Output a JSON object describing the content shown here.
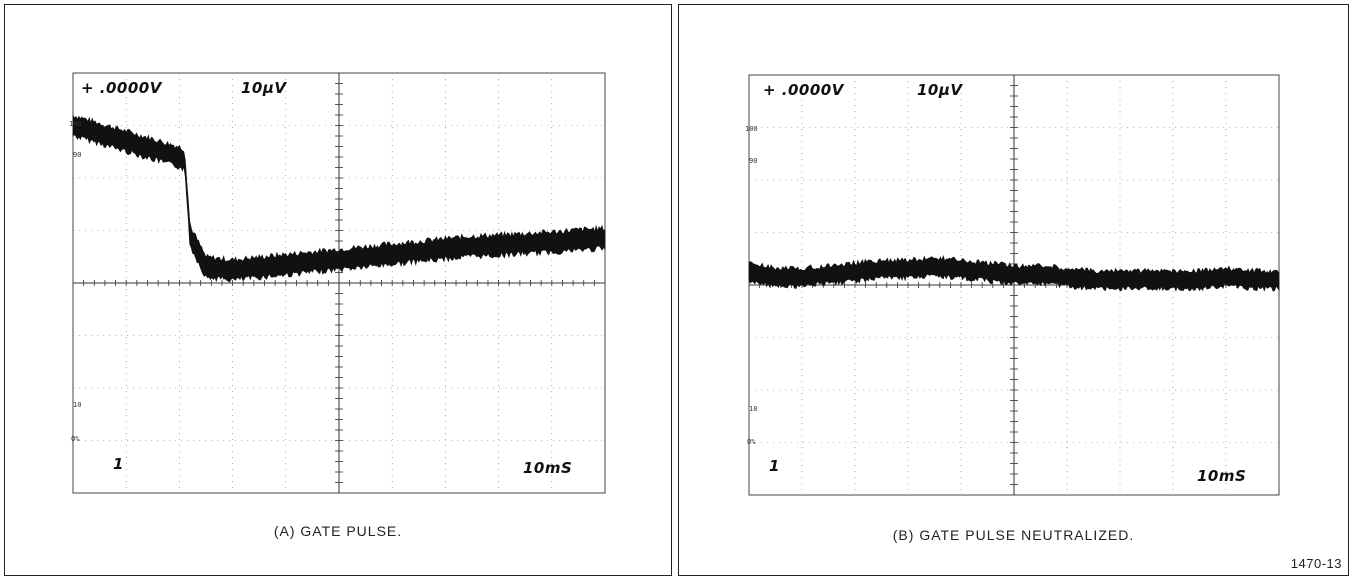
{
  "chart_data": [
    {
      "type": "line",
      "title": "",
      "caption": "(A)  GATE PULSE.",
      "readouts": {
        "offset": "+ .0000V",
        "vertical_scale": "10µV",
        "channel": "1",
        "time_scale": "10mS"
      },
      "percent_marks": [
        "100",
        "90",
        "10",
        "0%"
      ],
      "grid": {
        "x_divisions": 10,
        "y_divisions": 8
      },
      "xlim": [
        0,
        10
      ],
      "ylim": [
        -4,
        4
      ],
      "series": [
        {
          "x": [
            0,
            0.5,
            1,
            1.5,
            2,
            2.1,
            2.2,
            2.5,
            3,
            3.5,
            4,
            4.5,
            5,
            5.5,
            6,
            6.5,
            7,
            7.5,
            8,
            8.5,
            9,
            9.5,
            10
          ],
          "y": [
            3.0,
            2.85,
            2.7,
            2.55,
            2.4,
            2.35,
            0.9,
            0.3,
            0.25,
            0.3,
            0.35,
            0.4,
            0.45,
            0.5,
            0.55,
            0.6,
            0.65,
            0.7,
            0.72,
            0.75,
            0.78,
            0.82,
            0.85
          ],
          "noise_band": 0.25
        }
      ]
    },
    {
      "type": "line",
      "title": "",
      "caption": "(B)  GATE PULSE NEUTRALIZED.",
      "readouts": {
        "offset": "+ .0000V",
        "vertical_scale": "10µV",
        "channel": "1",
        "time_scale": "10mS"
      },
      "percent_marks": [
        "100",
        "90",
        "10",
        "0%"
      ],
      "grid": {
        "x_divisions": 10,
        "y_divisions": 8
      },
      "xlim": [
        0,
        10
      ],
      "ylim": [
        -4,
        4
      ],
      "series": [
        {
          "x": [
            0,
            0.5,
            1,
            1.5,
            2,
            2.5,
            3,
            3.5,
            4,
            4.5,
            5,
            5.5,
            6,
            6.5,
            7,
            7.5,
            8,
            8.5,
            9,
            9.5,
            10
          ],
          "y": [
            0.25,
            0.15,
            0.15,
            0.2,
            0.25,
            0.3,
            0.3,
            0.35,
            0.3,
            0.25,
            0.2,
            0.2,
            0.15,
            0.1,
            0.1,
            0.1,
            0.1,
            0.1,
            0.15,
            0.1,
            0.1
          ],
          "noise_band": 0.22
        }
      ]
    }
  ],
  "figure_id": "1470-13"
}
